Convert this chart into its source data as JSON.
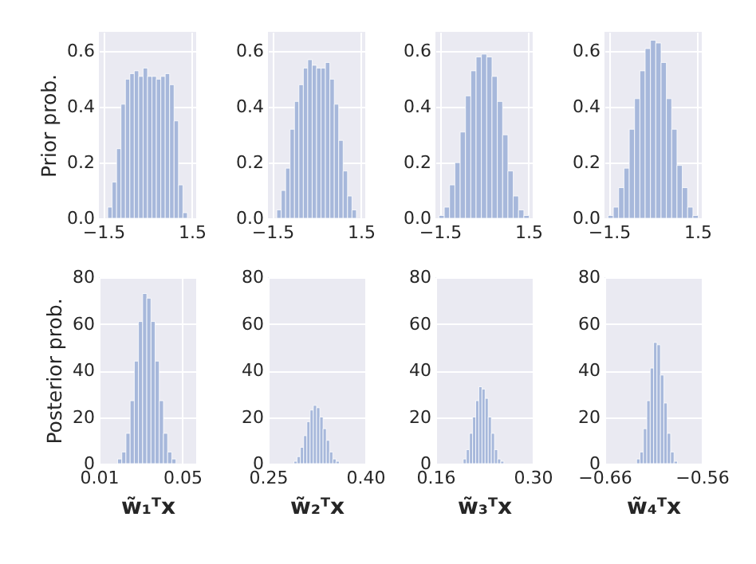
{
  "chart_data": [
    {
      "type": "histogram",
      "ylabel": "Prior prob.",
      "bins": [
        -1.35,
        -1.2,
        -1.05,
        -0.9,
        -0.75,
        -0.6,
        -0.45,
        -0.3,
        -0.15,
        0,
        0.15,
        0.3,
        0.45,
        0.6,
        0.75,
        0.9,
        1.05,
        1.2,
        1.35
      ],
      "values": [
        0.04,
        0.13,
        0.25,
        0.41,
        0.5,
        0.52,
        0.53,
        0.51,
        0.54,
        0.51,
        0.51,
        0.5,
        0.51,
        0.52,
        0.48,
        0.35,
        0.12,
        0.02
      ],
      "color": "#a7b8db",
      "xlim": [
        -1.65,
        1.65
      ],
      "xticks": [
        -1.5,
        1.5
      ],
      "ylim": [
        0,
        0.67
      ],
      "yticks": [
        {
          "value": 0,
          "label": "0.0"
        },
        {
          "value": 0.2,
          "label": "0.2"
        },
        {
          "value": 0.4,
          "label": "0.4"
        },
        {
          "value": 0.6,
          "label": "0.6"
        }
      ],
      "grid": true
    },
    {
      "type": "histogram",
      "bins": [
        -1.35,
        -1.2,
        -1.05,
        -0.9,
        -0.75,
        -0.6,
        -0.45,
        -0.3,
        -0.15,
        0,
        0.15,
        0.3,
        0.45,
        0.6,
        0.75,
        0.9,
        1.05,
        1.2,
        1.35
      ],
      "values": [
        0.03,
        0.1,
        0.18,
        0.32,
        0.42,
        0.48,
        0.54,
        0.57,
        0.55,
        0.54,
        0.54,
        0.56,
        0.5,
        0.41,
        0.28,
        0.17,
        0.08,
        0.03
      ],
      "color": "#a7b8db",
      "xlim": [
        -1.65,
        1.65
      ],
      "xticks": [
        -1.5,
        1.5
      ],
      "ylim": [
        0,
        0.67
      ],
      "yticks": [
        {
          "value": 0,
          "label": "0.0"
        },
        {
          "value": 0.2,
          "label": "0.2"
        },
        {
          "value": 0.4,
          "label": "0.4"
        },
        {
          "value": 0.6,
          "label": "0.6"
        }
      ],
      "grid": true
    },
    {
      "type": "histogram",
      "bins": [
        -1.53,
        -1.35,
        -1.17,
        -0.99,
        -0.81,
        -0.63,
        -0.45,
        -0.27,
        -0.09,
        0.09,
        0.27,
        0.45,
        0.63,
        0.81,
        0.99,
        1.17,
        1.35,
        1.53
      ],
      "values": [
        0.01,
        0.04,
        0.12,
        0.2,
        0.31,
        0.44,
        0.53,
        0.58,
        0.59,
        0.58,
        0.51,
        0.42,
        0.3,
        0.17,
        0.08,
        0.03,
        0.01
      ],
      "color": "#a7b8db",
      "xlim": [
        -1.65,
        1.65
      ],
      "xticks": [
        -1.5,
        1.5
      ],
      "ylim": [
        0,
        0.67
      ],
      "yticks": [
        {
          "value": 0,
          "label": "0.0"
        },
        {
          "value": 0.2,
          "label": "0.2"
        },
        {
          "value": 0.4,
          "label": "0.4"
        },
        {
          "value": 0.6,
          "label": "0.6"
        }
      ],
      "grid": true
    },
    {
      "type": "histogram",
      "bins": [
        -1.53,
        -1.35,
        -1.17,
        -0.99,
        -0.81,
        -0.63,
        -0.45,
        -0.27,
        -0.09,
        0.09,
        0.27,
        0.45,
        0.63,
        0.81,
        0.99,
        1.17,
        1.35,
        1.53
      ],
      "values": [
        0.01,
        0.04,
        0.11,
        0.18,
        0.32,
        0.43,
        0.53,
        0.61,
        0.64,
        0.63,
        0.56,
        0.43,
        0.32,
        0.19,
        0.11,
        0.04,
        0.01
      ],
      "color": "#a7b8db",
      "xlim": [
        -1.65,
        1.65
      ],
      "xticks": [
        -1.5,
        1.5
      ],
      "ylim": [
        0,
        0.67
      ],
      "yticks": [
        {
          "value": 0,
          "label": "0.0"
        },
        {
          "value": 0.2,
          "label": "0.2"
        },
        {
          "value": 0.4,
          "label": "0.4"
        },
        {
          "value": 0.6,
          "label": "0.6"
        }
      ],
      "grid": true
    },
    {
      "type": "histogram",
      "ylabel": "Posterior prob.",
      "xlabel": "w̃₁ᵀx",
      "bins": [
        0.019,
        0.021,
        0.023,
        0.025,
        0.027,
        0.029,
        0.031,
        0.033,
        0.035,
        0.037,
        0.039,
        0.041,
        0.043,
        0.045,
        0.047
      ],
      "values": [
        2,
        5,
        13,
        27,
        44,
        61,
        73,
        71,
        61,
        44,
        27,
        13,
        5,
        2
      ],
      "color": "#a7b8db",
      "xlim": [
        0.01,
        0.0567
      ],
      "xticks": [
        0.01,
        0.05
      ],
      "ylim": [
        0,
        80
      ],
      "yticks": [
        0,
        20,
        40,
        60,
        80
      ],
      "grid": true
    },
    {
      "type": "histogram",
      "xlabel": "w̃₂ᵀx",
      "bins": [
        0.29,
        0.295,
        0.3,
        0.305,
        0.31,
        0.315,
        0.32,
        0.325,
        0.33,
        0.335,
        0.34,
        0.345,
        0.35,
        0.355,
        0.36
      ],
      "values": [
        1,
        3,
        7,
        12,
        18,
        23,
        25,
        24,
        20,
        15,
        10,
        5,
        2,
        1
      ],
      "color": "#a7b8db",
      "xlim": [
        0.25,
        0.4
      ],
      "xticks": [
        0.25,
        {
          "value": 0.4,
          "label": "0.40"
        }
      ],
      "ylim": [
        0,
        80
      ],
      "yticks": [
        0,
        20,
        40,
        60,
        80
      ],
      "grid": true
    },
    {
      "type": "histogram",
      "xlabel": "w̃₃ᵀx",
      "bins": [
        0.2,
        0.2045,
        0.209,
        0.2135,
        0.218,
        0.2225,
        0.227,
        0.2315,
        0.236,
        0.2405,
        0.245,
        0.2495,
        0.254,
        0.2585
      ],
      "values": [
        2,
        6,
        13,
        20,
        27,
        33,
        32,
        28,
        20,
        13,
        6,
        2,
        1
      ],
      "color": "#a7b8db",
      "xlim": [
        0.16,
        0.3
      ],
      "xticks": [
        0.16,
        {
          "value": 0.3,
          "label": "0.30"
        }
      ],
      "ylim": [
        0,
        80
      ],
      "yticks": [
        0,
        20,
        40,
        60,
        80
      ],
      "grid": true
    },
    {
      "type": "histogram",
      "xlabel": "w̃₄ᵀx",
      "bins": [
        -0.627,
        -0.6235,
        -0.62,
        -0.6165,
        -0.613,
        -0.6095,
        -0.606,
        -0.6025,
        -0.599,
        -0.5955,
        -0.592,
        -0.5885,
        -0.585
      ],
      "values": [
        2,
        5,
        15,
        27,
        41,
        52,
        51,
        38,
        26,
        13,
        5,
        1
      ],
      "color": "#a7b8db",
      "xlim": [
        -0.66,
        -0.56
      ],
      "xticks": [
        -0.66,
        -0.56
      ],
      "ylim": [
        0,
        80
      ],
      "yticks": [
        0,
        20,
        40,
        60,
        80
      ],
      "grid": true
    }
  ]
}
